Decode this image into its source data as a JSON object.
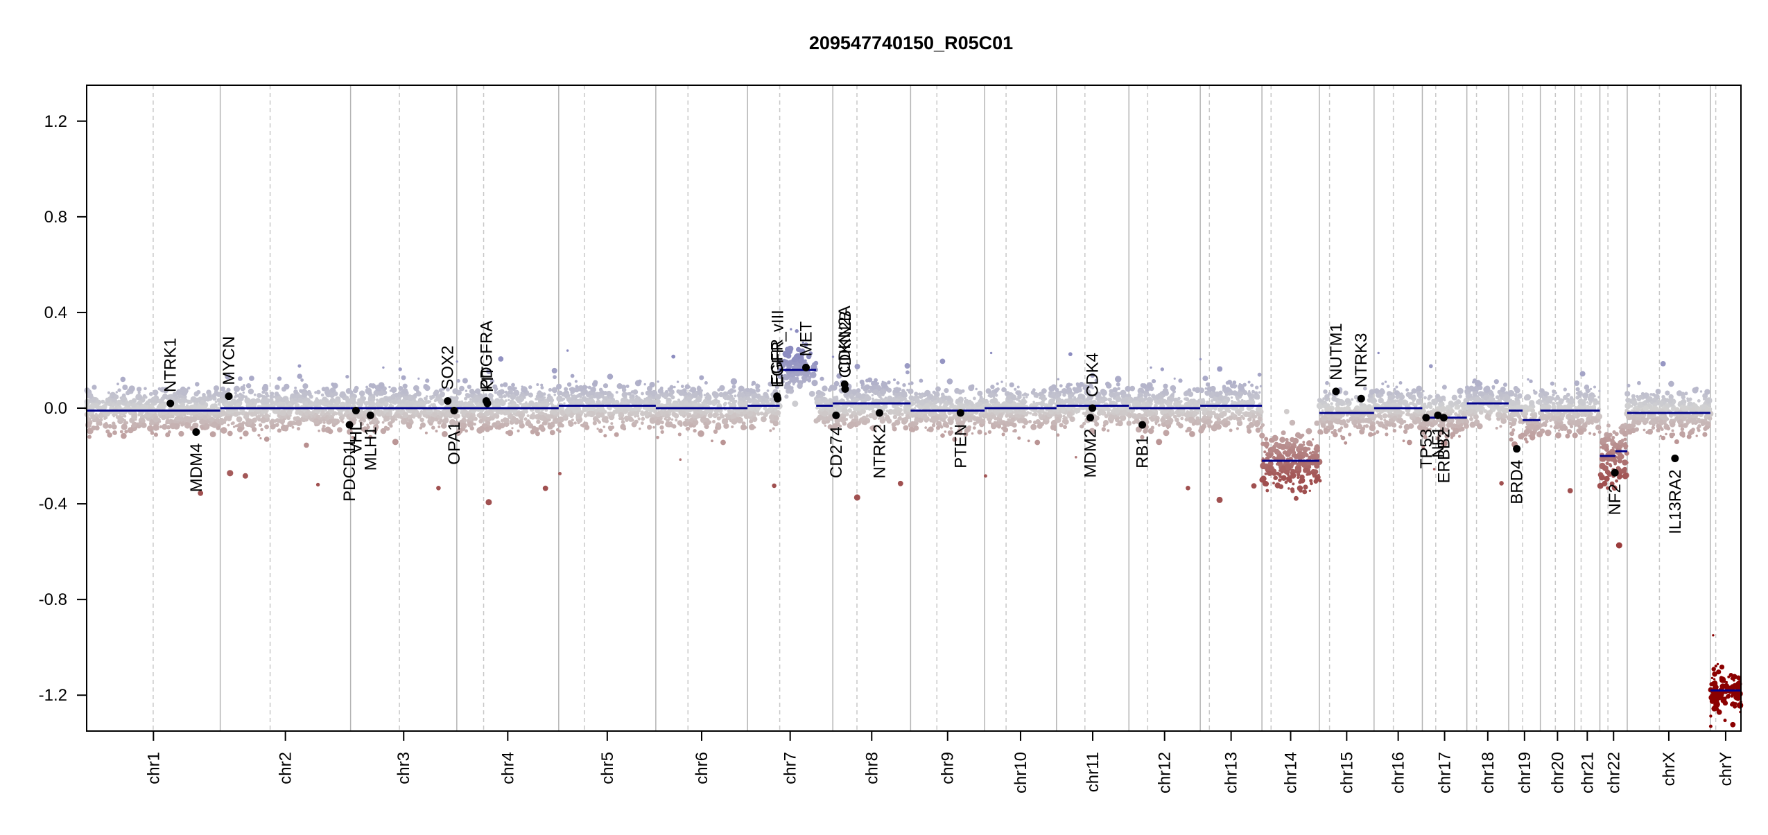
{
  "chart_data": {
    "type": "scatter",
    "title": "209547740150_R05C01",
    "xlabel": "",
    "ylabel": "",
    "ylim": [
      -1.35,
      1.35
    ],
    "y_ticks": [
      1.2,
      0.8,
      0.4,
      0.0,
      -0.4,
      -0.8,
      -1.2
    ],
    "y_tick_labels": [
      "1.2",
      "0.8",
      "0.4",
      "0.0",
      "-0.4",
      "-0.8",
      "-1.2"
    ],
    "grid": false,
    "point_colors": {
      "gain": "#8c8cc0",
      "neutral": "#d2d2d2",
      "loss": "#a05050",
      "deep_loss": "#8b0000"
    },
    "segment_color": "#00008b",
    "chromosomes": [
      {
        "name": "chr1",
        "start": 0,
        "end": 249,
        "centromere": 124
      },
      {
        "name": "chr2",
        "start": 249,
        "end": 492,
        "centromere": 93
      },
      {
        "name": "chr3",
        "start": 492,
        "end": 690,
        "centromere": 91
      },
      {
        "name": "chr4",
        "start": 690,
        "end": 880,
        "centromere": 50
      },
      {
        "name": "chr5",
        "start": 880,
        "end": 1061,
        "centromere": 48
      },
      {
        "name": "chr6",
        "start": 1061,
        "end": 1232,
        "centromere": 60
      },
      {
        "name": "chr7",
        "start": 1232,
        "end": 1391,
        "centromere": 60
      },
      {
        "name": "chr8",
        "start": 1391,
        "end": 1536,
        "centromere": 45
      },
      {
        "name": "chr9",
        "start": 1536,
        "end": 1674,
        "centromere": 49
      },
      {
        "name": "chr10",
        "start": 1674,
        "end": 1808,
        "centromere": 40
      },
      {
        "name": "chr11",
        "start": 1808,
        "end": 1943,
        "centromere": 53
      },
      {
        "name": "chr12",
        "start": 1943,
        "end": 2076,
        "centromere": 35
      },
      {
        "name": "chr13",
        "start": 2076,
        "end": 2191,
        "centromere": 17
      },
      {
        "name": "chr14",
        "start": 2191,
        "end": 2298,
        "centromere": 17
      },
      {
        "name": "chr15",
        "start": 2298,
        "end": 2400,
        "centromere": 19
      },
      {
        "name": "chr16",
        "start": 2400,
        "end": 2490,
        "centromere": 36
      },
      {
        "name": "chr17",
        "start": 2490,
        "end": 2573,
        "centromere": 25
      },
      {
        "name": "chr18",
        "start": 2573,
        "end": 2651,
        "centromere": 18
      },
      {
        "name": "chr19",
        "start": 2651,
        "end": 2710,
        "centromere": 26
      },
      {
        "name": "chr20",
        "start": 2710,
        "end": 2774,
        "centromere": 28
      },
      {
        "name": "chr21",
        "start": 2774,
        "end": 2821,
        "centromere": 12
      },
      {
        "name": "chr22",
        "start": 2821,
        "end": 2872,
        "centromere": 15
      },
      {
        "name": "chrX",
        "start": 2872,
        "end": 3027,
        "centromere": 60
      },
      {
        "name": "chrY",
        "start": 3027,
        "end": 3084,
        "centromere": 10
      }
    ],
    "segments": [
      {
        "x0": 0,
        "x1": 249,
        "y": -0.01
      },
      {
        "x0": 249,
        "x1": 492,
        "y": 0.0
      },
      {
        "x0": 492,
        "x1": 690,
        "y": 0.0
      },
      {
        "x0": 690,
        "x1": 880,
        "y": 0.0
      },
      {
        "x0": 880,
        "x1": 1061,
        "y": 0.01
      },
      {
        "x0": 1061,
        "x1": 1232,
        "y": 0.0
      },
      {
        "x0": 1232,
        "x1": 1292,
        "y": 0.01
      },
      {
        "x0": 1292,
        "x1": 1360,
        "y": 0.16
      },
      {
        "x0": 1360,
        "x1": 1391,
        "y": 0.01
      },
      {
        "x0": 1391,
        "x1": 1536,
        "y": 0.02
      },
      {
        "x0": 1536,
        "x1": 1674,
        "y": -0.01
      },
      {
        "x0": 1674,
        "x1": 1808,
        "y": 0.0
      },
      {
        "x0": 1808,
        "x1": 1943,
        "y": 0.01
      },
      {
        "x0": 1943,
        "x1": 2076,
        "y": 0.0
      },
      {
        "x0": 2076,
        "x1": 2191,
        "y": 0.01
      },
      {
        "x0": 2191,
        "x1": 2298,
        "y": -0.22
      },
      {
        "x0": 2298,
        "x1": 2400,
        "y": -0.02
      },
      {
        "x0": 2400,
        "x1": 2490,
        "y": 0.0
      },
      {
        "x0": 2490,
        "x1": 2573,
        "y": -0.04
      },
      {
        "x0": 2573,
        "x1": 2651,
        "y": 0.02
      },
      {
        "x0": 2651,
        "x1": 2677,
        "y": -0.01
      },
      {
        "x0": 2677,
        "x1": 2710,
        "y": -0.05
      },
      {
        "x0": 2710,
        "x1": 2774,
        "y": -0.01
      },
      {
        "x0": 2774,
        "x1": 2821,
        "y": -0.01
      },
      {
        "x0": 2821,
        "x1": 2850,
        "y": -0.2
      },
      {
        "x0": 2850,
        "x1": 2872,
        "y": -0.18
      },
      {
        "x0": 2872,
        "x1": 3027,
        "y": -0.02
      },
      {
        "x0": 3027,
        "x1": 3084,
        "y": -1.18
      }
    ],
    "genes": [
      {
        "name": "NTRK1",
        "x": 156,
        "y": 0.02,
        "label_side": "above"
      },
      {
        "name": "MDM4",
        "x": 204,
        "y": -0.1,
        "label_side": "below"
      },
      {
        "name": "MYCN",
        "x": 265,
        "y": 0.05,
        "label_side": "above"
      },
      {
        "name": "PDCD1L",
        "x": 490,
        "y": -0.07,
        "label_side": "below"
      },
      {
        "name": "VHL",
        "x": 502,
        "y": -0.01,
        "label_side": "below"
      },
      {
        "name": "MLH1",
        "x": 529,
        "y": -0.03,
        "label_side": "below"
      },
      {
        "name": "SOX2",
        "x": 673,
        "y": 0.03,
        "label_side": "above"
      },
      {
        "name": "OPA1",
        "x": 685,
        "y": -0.01,
        "label_side": "below"
      },
      {
        "name": "PDGFRA",
        "x": 745,
        "y": 0.03,
        "label_side": "above"
      },
      {
        "name": "KIT",
        "x": 747,
        "y": 0.02,
        "label_side": "above"
      },
      {
        "name": "EGFR",
        "x": 1287,
        "y": 0.05,
        "label_side": "above"
      },
      {
        "name": "EGFR_vIII",
        "x": 1288,
        "y": 0.04,
        "label_side": "above"
      },
      {
        "name": "MET",
        "x": 1341,
        "y": 0.17,
        "label_side": "above"
      },
      {
        "name": "CD274",
        "x": 1397,
        "y": -0.03,
        "label_side": "below"
      },
      {
        "name": "CDKN2A",
        "x": 1413,
        "y": 0.1,
        "label_side": "above"
      },
      {
        "name": "CDKN2B",
        "x": 1414,
        "y": 0.08,
        "label_side": "above"
      },
      {
        "name": "NTRK2",
        "x": 1478,
        "y": -0.02,
        "label_side": "below"
      },
      {
        "name": "PTEN",
        "x": 1629,
        "y": -0.02,
        "label_side": "below"
      },
      {
        "name": "MDM2",
        "x": 1871,
        "y": -0.04,
        "label_side": "below"
      },
      {
        "name": "CDK4",
        "x": 1875,
        "y": 0.0,
        "label_side": "above"
      },
      {
        "name": "RB1",
        "x": 1968,
        "y": -0.07,
        "label_side": "below"
      },
      {
        "name": "NUTM1",
        "x": 2329,
        "y": 0.07,
        "label_side": "above"
      },
      {
        "name": "NTRK3",
        "x": 2376,
        "y": 0.04,
        "label_side": "above"
      },
      {
        "name": "TP53",
        "x": 2497,
        "y": -0.04,
        "label_side": "below"
      },
      {
        "name": "NF1",
        "x": 2519,
        "y": -0.03,
        "label_side": "below"
      },
      {
        "name": "ERBB2",
        "x": 2530,
        "y": -0.04,
        "label_side": "below"
      },
      {
        "name": "BRD4",
        "x": 2666,
        "y": -0.17,
        "label_side": "below"
      },
      {
        "name": "NF2",
        "x": 2849,
        "y": -0.27,
        "label_side": "below"
      },
      {
        "name": "IL13RA2",
        "x": 2961,
        "y": -0.21,
        "label_side": "below"
      }
    ]
  }
}
